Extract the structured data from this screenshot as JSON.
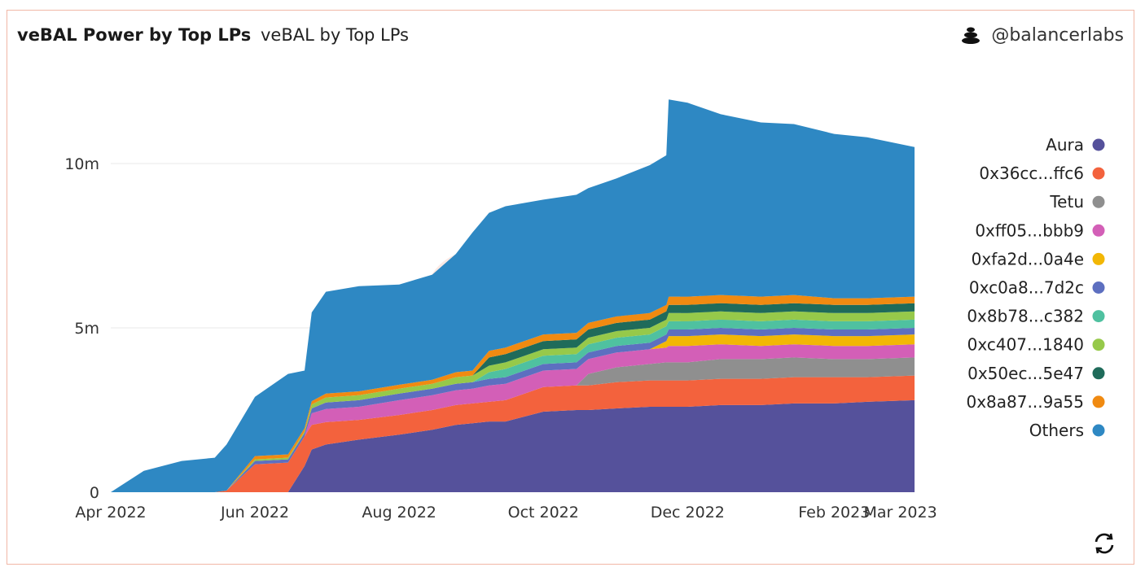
{
  "header": {
    "title": "veBAL Power by Top LPs",
    "subtitle": "veBAL by Top LPs",
    "handle": "@balancerlabs"
  },
  "icons": {
    "brand": "balancer-stack-icon",
    "refresh": "refresh-icon"
  },
  "chart_data": {
    "type": "area",
    "stacked": true,
    "title": "veBAL Power by Top LPs",
    "subtitle": "veBAL by Top LPs",
    "xlabel": "",
    "ylabel": "",
    "ylim": [
      0,
      12500000
    ],
    "y_ticks": [
      0,
      5000000,
      10000000
    ],
    "y_tick_labels": [
      "0",
      "5m",
      "10m"
    ],
    "x_range": [
      "2022-04-01",
      "2023-03-07"
    ],
    "x_ticks": [
      "2022-04-01",
      "2022-06-01",
      "2022-08-01",
      "2022-10-01",
      "2022-12-01",
      "2023-02-01",
      "2023-03-01"
    ],
    "x_tick_labels": [
      "Apr 2022",
      "Jun 2022",
      "Aug 2022",
      "Oct 2022",
      "Dec 2022",
      "Feb 2023",
      "Mar 2023"
    ],
    "grid": true,
    "legend_position": "right",
    "x": [
      "2022-04-01",
      "2022-04-15",
      "2022-05-01",
      "2022-05-15",
      "2022-05-20",
      "2022-06-01",
      "2022-06-15",
      "2022-06-22",
      "2022-06-25",
      "2022-07-01",
      "2022-07-15",
      "2022-08-01",
      "2022-08-15",
      "2022-08-25",
      "2022-09-01",
      "2022-09-08",
      "2022-09-15",
      "2022-10-01",
      "2022-10-15",
      "2022-10-20",
      "2022-11-01",
      "2022-11-15",
      "2022-11-22",
      "2022-11-23",
      "2022-12-01",
      "2022-12-15",
      "2023-01-01",
      "2023-01-15",
      "2023-02-01",
      "2023-02-15",
      "2023-03-07"
    ],
    "series": [
      {
        "name": "Aura",
        "color": "#55519b",
        "values": [
          0,
          0,
          0,
          0,
          0,
          0,
          0,
          0.8,
          1.3,
          1.45,
          1.6,
          1.75,
          1.9,
          2.05,
          2.1,
          2.15,
          2.15,
          2.45,
          2.5,
          2.5,
          2.55,
          2.6,
          2.6,
          2.6,
          2.6,
          2.65,
          2.65,
          2.7,
          2.7,
          2.75,
          2.8
        ]
      },
      {
        "name": "0x36cc...ffc6",
        "color": "#f3623d",
        "values": [
          0,
          0,
          0,
          0,
          0.05,
          0.85,
          0.9,
          0.9,
          0.75,
          0.68,
          0.6,
          0.6,
          0.6,
          0.6,
          0.6,
          0.6,
          0.65,
          0.75,
          0.75,
          0.75,
          0.8,
          0.8,
          0.8,
          0.8,
          0.8,
          0.8,
          0.8,
          0.8,
          0.8,
          0.75,
          0.75
        ]
      },
      {
        "name": "Tetu",
        "color": "#8f8f8f",
        "values": [
          0,
          0,
          0,
          0,
          0,
          0,
          0,
          0,
          0,
          0,
          0,
          0,
          0,
          0,
          0,
          0,
          0,
          0,
          0,
          0.35,
          0.45,
          0.5,
          0.55,
          0.55,
          0.55,
          0.6,
          0.6,
          0.6,
          0.55,
          0.55,
          0.55
        ]
      },
      {
        "name": "0xff05...bbb9",
        "color": "#d35fb7",
        "values": [
          0,
          0,
          0,
          0,
          0,
          0,
          0,
          0,
          0.35,
          0.4,
          0.4,
          0.45,
          0.45,
          0.45,
          0.45,
          0.5,
          0.5,
          0.5,
          0.5,
          0.45,
          0.45,
          0.45,
          0.45,
          0.5,
          0.5,
          0.45,
          0.4,
          0.4,
          0.4,
          0.4,
          0.4
        ]
      },
      {
        "name": "0xfa2d...0a4e",
        "color": "#f2b705",
        "values": [
          0,
          0,
          0,
          0,
          0,
          0,
          0,
          0,
          0,
          0,
          0,
          0,
          0,
          0,
          0,
          0,
          0,
          0,
          0,
          0,
          0,
          0,
          0.2,
          0.3,
          0.3,
          0.3,
          0.3,
          0.3,
          0.3,
          0.3,
          0.3
        ]
      },
      {
        "name": "0xc0a8...7d2c",
        "color": "#5d6fc0",
        "values": [
          0,
          0,
          0,
          0,
          0,
          0.1,
          0.1,
          0.1,
          0.15,
          0.2,
          0.2,
          0.2,
          0.2,
          0.2,
          0.2,
          0.2,
          0.2,
          0.2,
          0.2,
          0.2,
          0.2,
          0.2,
          0.2,
          0.2,
          0.2,
          0.2,
          0.2,
          0.2,
          0.2,
          0.2,
          0.2
        ]
      },
      {
        "name": "0x8b78...c382",
        "color": "#4fc1a0",
        "values": [
          0,
          0,
          0,
          0,
          0,
          0,
          0,
          0,
          0,
          0,
          0,
          0,
          0,
          0,
          0,
          0.2,
          0.25,
          0.25,
          0.25,
          0.25,
          0.25,
          0.25,
          0.25,
          0.25,
          0.25,
          0.25,
          0.25,
          0.25,
          0.25,
          0.25,
          0.25
        ]
      },
      {
        "name": "0xc407...1840",
        "color": "#96c94a",
        "values": [
          0,
          0,
          0,
          0,
          0,
          0.05,
          0.05,
          0.05,
          0.12,
          0.15,
          0.15,
          0.15,
          0.15,
          0.2,
          0.2,
          0.2,
          0.2,
          0.2,
          0.2,
          0.2,
          0.2,
          0.2,
          0.2,
          0.25,
          0.25,
          0.25,
          0.25,
          0.25,
          0.25,
          0.25,
          0.25
        ]
      },
      {
        "name": "0x50ec...5e47",
        "color": "#1f6b5a",
        "values": [
          0,
          0,
          0,
          0,
          0,
          0,
          0,
          0,
          0,
          0,
          0,
          0,
          0,
          0,
          0,
          0.25,
          0.25,
          0.25,
          0.25,
          0.25,
          0.25,
          0.25,
          0.25,
          0.25,
          0.25,
          0.25,
          0.25,
          0.25,
          0.25,
          0.25,
          0.25
        ]
      },
      {
        "name": "0x8a87...9a55",
        "color": "#f08a11",
        "values": [
          0,
          0,
          0,
          0,
          0,
          0.1,
          0.1,
          0.1,
          0.1,
          0.12,
          0.12,
          0.12,
          0.12,
          0.15,
          0.15,
          0.2,
          0.2,
          0.2,
          0.2,
          0.2,
          0.2,
          0.2,
          0.2,
          0.25,
          0.25,
          0.25,
          0.25,
          0.25,
          0.2,
          0.2,
          0.2
        ]
      },
      {
        "name": "Others",
        "color": "#2e88c3",
        "values": [
          0,
          0.65,
          0.95,
          1.05,
          1.4,
          1.8,
          2.45,
          1.75,
          2.7,
          3.1,
          3.2,
          3.05,
          3.2,
          3.6,
          4.2,
          4.2,
          4.3,
          4.1,
          4.2,
          4.1,
          4.2,
          4.5,
          4.55,
          6.0,
          5.9,
          5.5,
          5.3,
          5.2,
          5.0,
          4.9,
          4.55
        ]
      }
    ],
    "value_unit_multiplier": 1000000
  }
}
